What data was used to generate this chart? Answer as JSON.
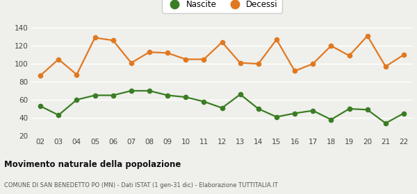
{
  "years": [
    "02",
    "03",
    "04",
    "05",
    "06",
    "07",
    "08",
    "09",
    "10",
    "11",
    "12",
    "13",
    "14",
    "15",
    "16",
    "17",
    "18",
    "19",
    "20",
    "21",
    "22"
  ],
  "nascite": [
    53,
    43,
    60,
    65,
    65,
    70,
    70,
    65,
    63,
    58,
    51,
    66,
    50,
    41,
    45,
    48,
    38,
    50,
    49,
    34,
    45
  ],
  "decessi": [
    87,
    105,
    88,
    129,
    126,
    101,
    113,
    112,
    105,
    105,
    124,
    101,
    100,
    127,
    92,
    100,
    120,
    109,
    131,
    97,
    110
  ],
  "nascite_color": "#3a7d23",
  "decessi_color": "#e07820",
  "background_color": "#efefeb",
  "grid_color": "#ffffff",
  "title": "Movimento naturale della popolazione",
  "subtitle": "COMUNE DI SAN BENEDETTO PO (MN) - Dati ISTAT (1 gen-31 dic) - Elaborazione TUTTITALIA.IT",
  "legend_nascite": "Nascite",
  "legend_decessi": "Decessi",
  "ylim": [
    20,
    145
  ],
  "yticks": [
    20,
    40,
    60,
    80,
    100,
    120,
    140
  ],
  "marker_size": 4.5,
  "line_width": 1.6
}
